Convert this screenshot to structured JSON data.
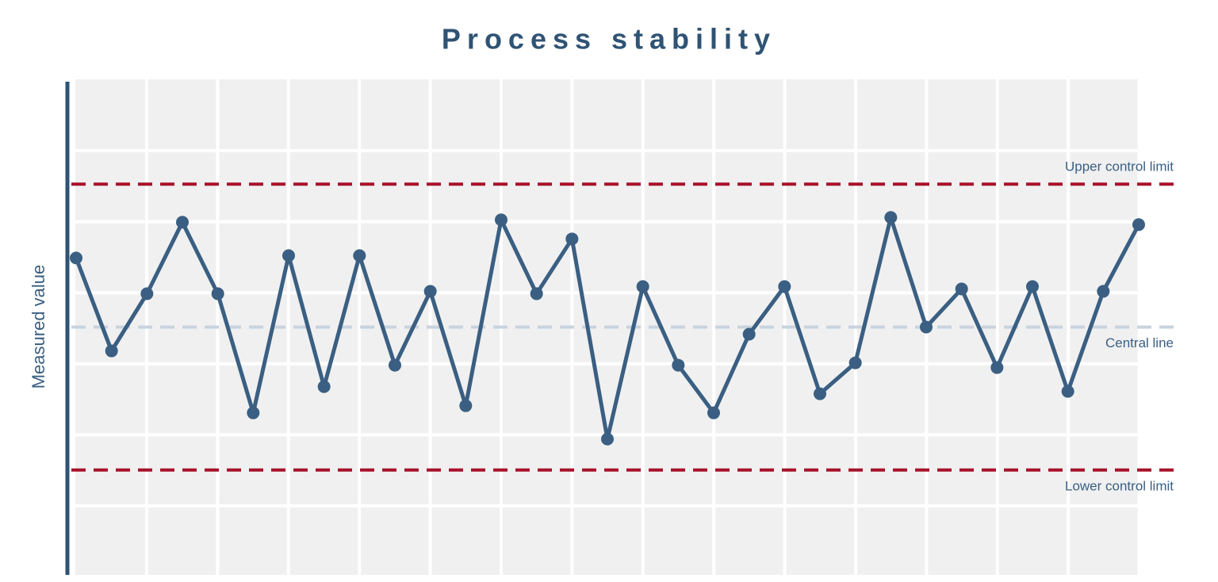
{
  "chart_data": {
    "type": "line",
    "title": "Process stability",
    "y_label": "Measured value",
    "color": "#3a5f82",
    "values": [
      64.5,
      45,
      57,
      72,
      57,
      32,
      65,
      37.5,
      65,
      42,
      57.5,
      33.5,
      72.5,
      57,
      68.5,
      26.5,
      58.5,
      42,
      32,
      48.5,
      58.5,
      36,
      42.5,
      73,
      50,
      58,
      41.5,
      58.5,
      36.5,
      57.5,
      71.5
    ],
    "ylim": [
      0,
      100
    ],
    "control_lines": [
      {
        "label": "Upper control limit",
        "value": 80,
        "color": "#a8122a"
      },
      {
        "label": "Central line",
        "value": 50,
        "color": "#c9d3de"
      },
      {
        "label": "Lower control limit",
        "value": 20,
        "color": "#a8122a"
      }
    ]
  }
}
